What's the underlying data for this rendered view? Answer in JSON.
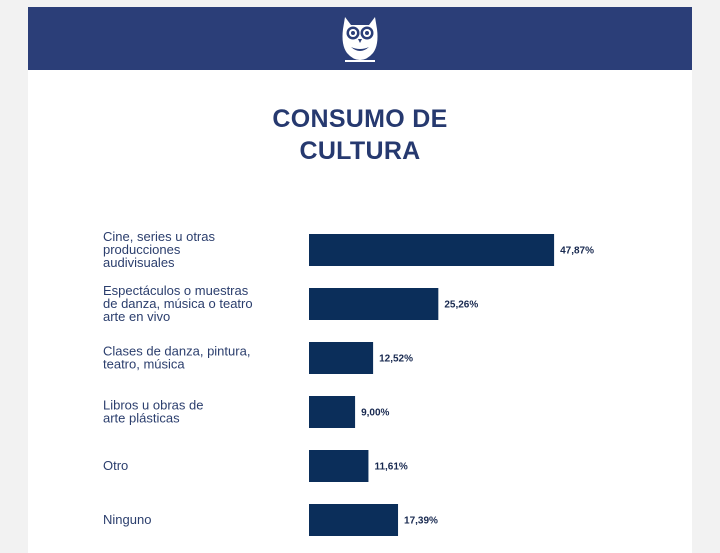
{
  "header": {
    "logo_icon": "owl-icon",
    "background": "#2b3e78"
  },
  "chart_data": {
    "type": "bar",
    "orientation": "horizontal",
    "title": "CONSUMO DE CULTURA",
    "title_lines": [
      "CONSUMO DE",
      "CULTURA"
    ],
    "categories": [
      "Cine, series u otras producciones audivisuales",
      "Espectáculos o muestras de danza, música o teatro arte en vivo",
      "Clases de danza, pintura, teatro, música",
      "Libros u obras de arte plásticas",
      "Otro",
      "Ninguno"
    ],
    "category_lines": [
      [
        "Cine, series u otras",
        "producciones",
        "audivisuales"
      ],
      [
        "Espectáculos o muestras",
        "de danza, música o teatro",
        "arte en vivo"
      ],
      [
        "Clases de danza, pintura,",
        "teatro, música"
      ],
      [
        "Libros u obras de",
        "arte plásticas"
      ],
      [
        "Otro"
      ],
      [
        "Ninguno"
      ]
    ],
    "values": [
      47.87,
      25.26,
      12.52,
      9.0,
      11.61,
      17.39
    ],
    "value_labels": [
      "47,87%",
      "25,26%",
      "12,52%",
      "9,00%",
      "11,61%",
      "17,39%"
    ],
    "xlim": [
      0,
      50
    ],
    "bar_color": "#0b2e5a",
    "grid": false,
    "legend": "none"
  }
}
